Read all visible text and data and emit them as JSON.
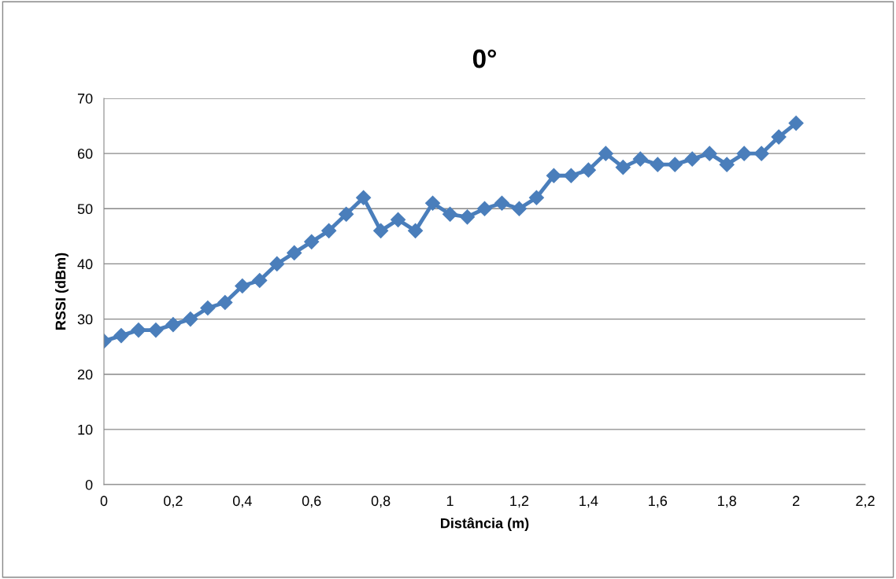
{
  "chart_data": {
    "type": "line",
    "title": "0°",
    "xlabel": "Distância (m)",
    "ylabel": "RSSI (dBm)",
    "x": [
      0,
      0.05,
      0.1,
      0.15,
      0.2,
      0.25,
      0.3,
      0.35,
      0.4,
      0.45,
      0.5,
      0.55,
      0.6,
      0.65,
      0.7,
      0.75,
      0.8,
      0.85,
      0.9,
      0.95,
      1.0,
      1.05,
      1.1,
      1.15,
      1.2,
      1.25,
      1.3,
      1.35,
      1.4,
      1.45,
      1.5,
      1.55,
      1.6,
      1.65,
      1.7,
      1.75,
      1.8,
      1.85,
      1.9,
      1.95,
      2.0
    ],
    "series": [
      {
        "color": "#4a7ebb",
        "values": [
          26,
          27,
          28,
          28,
          29,
          30,
          32,
          33,
          36,
          37,
          40,
          42,
          44,
          46,
          49,
          52,
          46,
          48,
          46,
          51,
          49,
          48.5,
          50,
          51,
          50,
          52,
          56,
          56,
          57,
          60,
          57.5,
          59,
          58,
          58,
          59,
          60,
          58,
          60,
          60,
          63,
          65.5
        ]
      }
    ],
    "xlim": [
      0,
      2.2
    ],
    "xticks": [
      0,
      {
        "value": 0.2,
        "label": "0,2"
      },
      {
        "value": 0.4,
        "label": "0,4"
      },
      {
        "value": 0.6,
        "label": "0,6"
      },
      {
        "value": 0.8,
        "label": "0,8"
      },
      1,
      {
        "value": 1.2,
        "label": "1,2"
      },
      {
        "value": 1.4,
        "label": "1,4"
      },
      {
        "value": 1.6,
        "label": "1,6"
      },
      {
        "value": 1.8,
        "label": "1,8"
      },
      2,
      {
        "value": 2.2,
        "label": "2,2"
      }
    ],
    "ylim": [
      0,
      70
    ],
    "yticks": [
      0,
      10,
      20,
      30,
      40,
      50,
      60,
      70
    ],
    "grid": "y",
    "marker": "diamond",
    "line_style": "solid"
  }
}
